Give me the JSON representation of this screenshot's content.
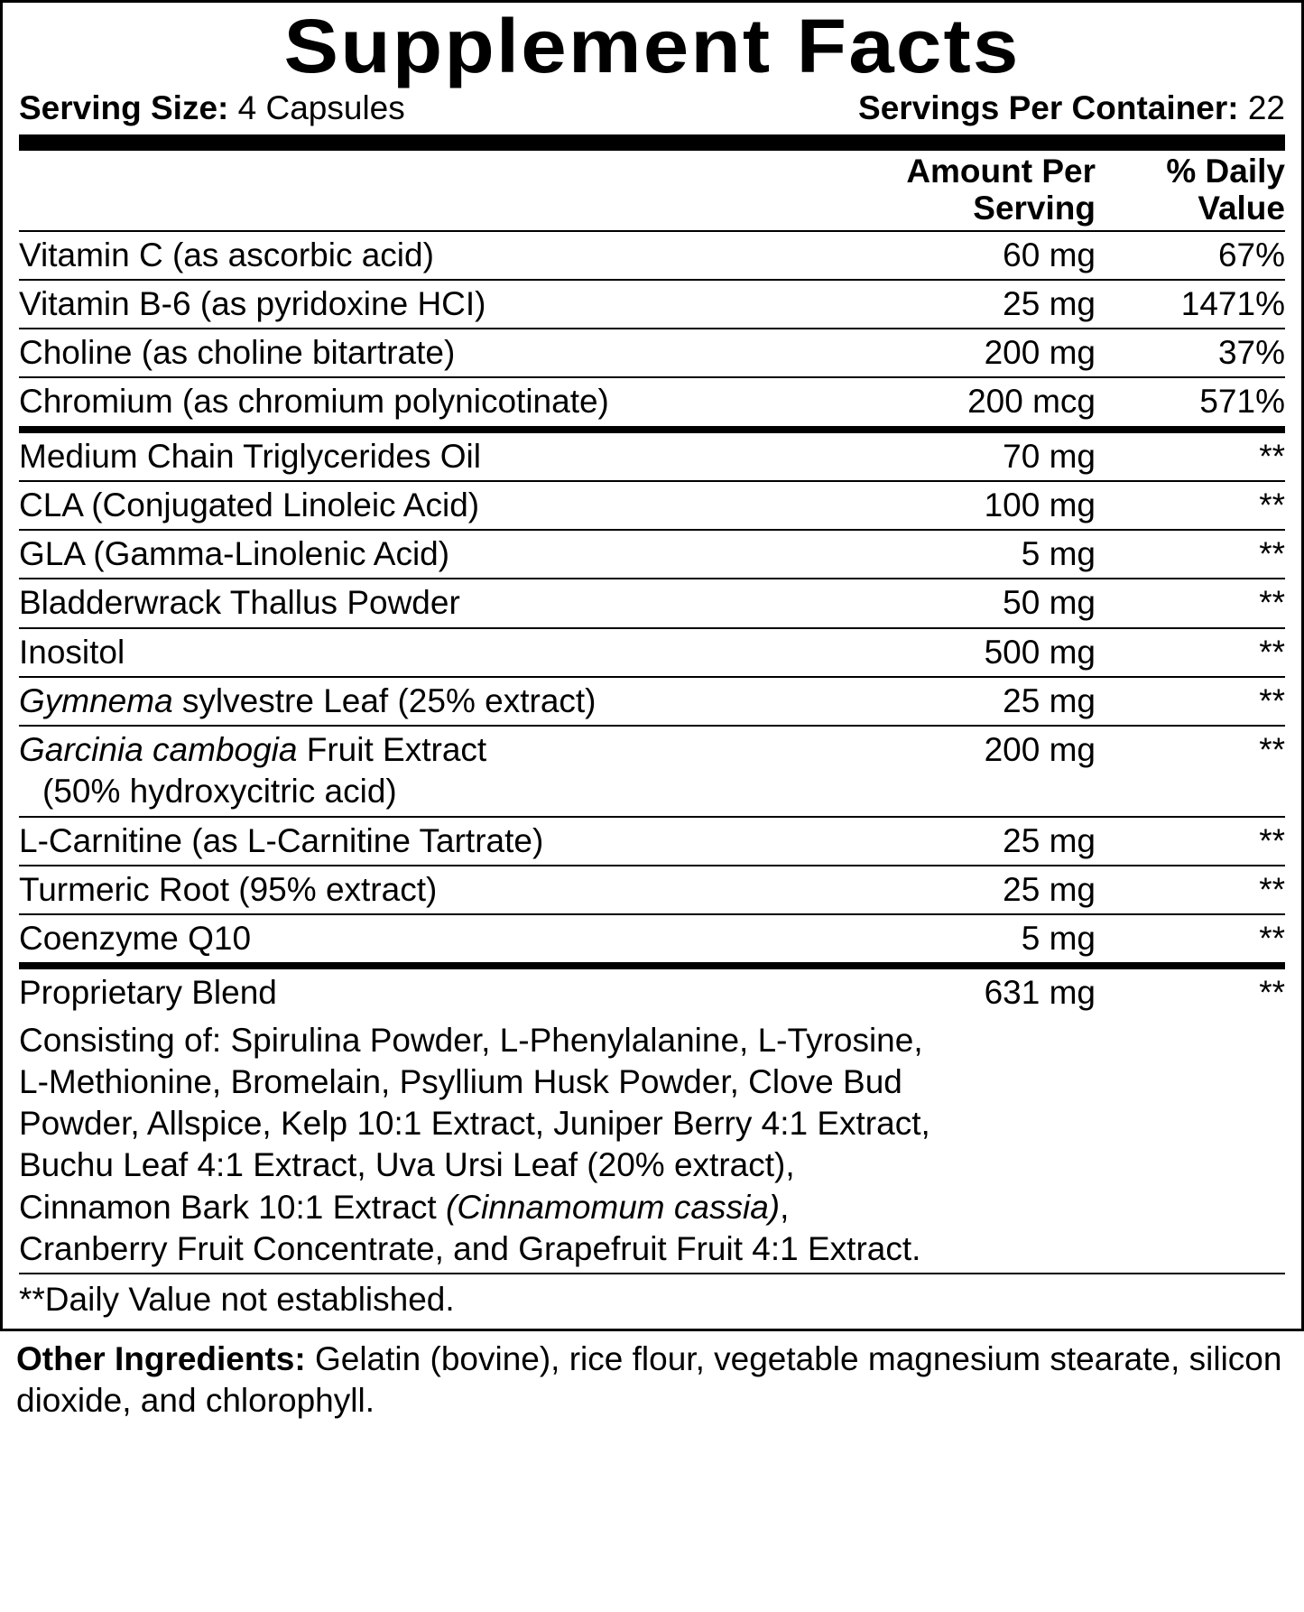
{
  "title": "Supplement Facts",
  "serving_size_label": "Serving Size:",
  "serving_size_value": "4 Capsules",
  "servings_per_label": "Servings Per Container:",
  "servings_per_value": "22",
  "headers": {
    "amount": "Amount Per Serving",
    "dv": "% Daily Value"
  },
  "section1": [
    {
      "name": "Vitamin C (as ascorbic acid)",
      "amount": "60 mg",
      "dv": "67%"
    },
    {
      "name": "Vitamin B-6 (as pyridoxine HCI)",
      "amount": "25 mg",
      "dv": "1471%"
    },
    {
      "name": "Choline (as choline bitartrate)",
      "amount": "200 mg",
      "dv": "37%"
    },
    {
      "name": "Chromium (as chromium polynicotinate)",
      "amount": "200 mcg",
      "dv": "571%"
    }
  ],
  "section2": [
    {
      "name": "Medium Chain Triglycerides Oil",
      "amount": "70 mg",
      "dv": "**"
    },
    {
      "name": "CLA (Conjugated Linoleic Acid)",
      "amount": "100 mg",
      "dv": "**"
    },
    {
      "name": "GLA (Gamma-Linolenic Acid)",
      "amount": "5 mg",
      "dv": "**"
    },
    {
      "name": "Bladderwrack Thallus Powder",
      "amount": "50 mg",
      "dv": "**"
    },
    {
      "name": "Inositol",
      "amount": "500 mg",
      "dv": "**"
    }
  ],
  "gymnema_pre": "Gymnema",
  "gymnema_post": " sylvestre Leaf (25% extract)",
  "gymnema_amount": "25 mg",
  "gymnema_dv": "**",
  "garcinia_pre": "Garcinia cambogia",
  "garcinia_post": " Fruit Extract",
  "garcinia_sub": "(50% hydroxycitric acid)",
  "garcinia_amount": "200 mg",
  "garcinia_dv": "**",
  "section3": [
    {
      "name": "L-Carnitine (as L-Carnitine Tartrate)",
      "amount": "25 mg",
      "dv": "**"
    },
    {
      "name": "Turmeric Root (95% extract)",
      "amount": "25 mg",
      "dv": "**"
    },
    {
      "name": "Coenzyme Q10",
      "amount": "5 mg",
      "dv": "**"
    }
  ],
  "blend": {
    "name": "Proprietary Blend",
    "amount": "631 mg",
    "dv": "**",
    "line1": "Consisting of: Spirulina Powder, L-Phenylalanine, L-Tyrosine,",
    "line2": "L-Methionine, Bromelain, Psyllium Husk Powder, Clove Bud",
    "line3": "Powder, Allspice, Kelp 10:1 Extract, Juniper Berry 4:1 Extract,",
    "line4": "Buchu Leaf 4:1 Extract, Uva Ursi Leaf (20% extract),",
    "line5a": "Cinnamon Bark 10:1 Extract ",
    "line5b": "(Cinnamomum cassia)",
    "line5c": ",",
    "line6": "Cranberry Fruit Concentrate, and Grapefruit Fruit 4:1 Extract."
  },
  "footnote": "**Daily Value not established.",
  "other_label": "Other Ingredients: ",
  "other_text": "Gelatin (bovine), rice flour, vegetable magnesium stearate, silicon dioxide, and chlorophyll."
}
